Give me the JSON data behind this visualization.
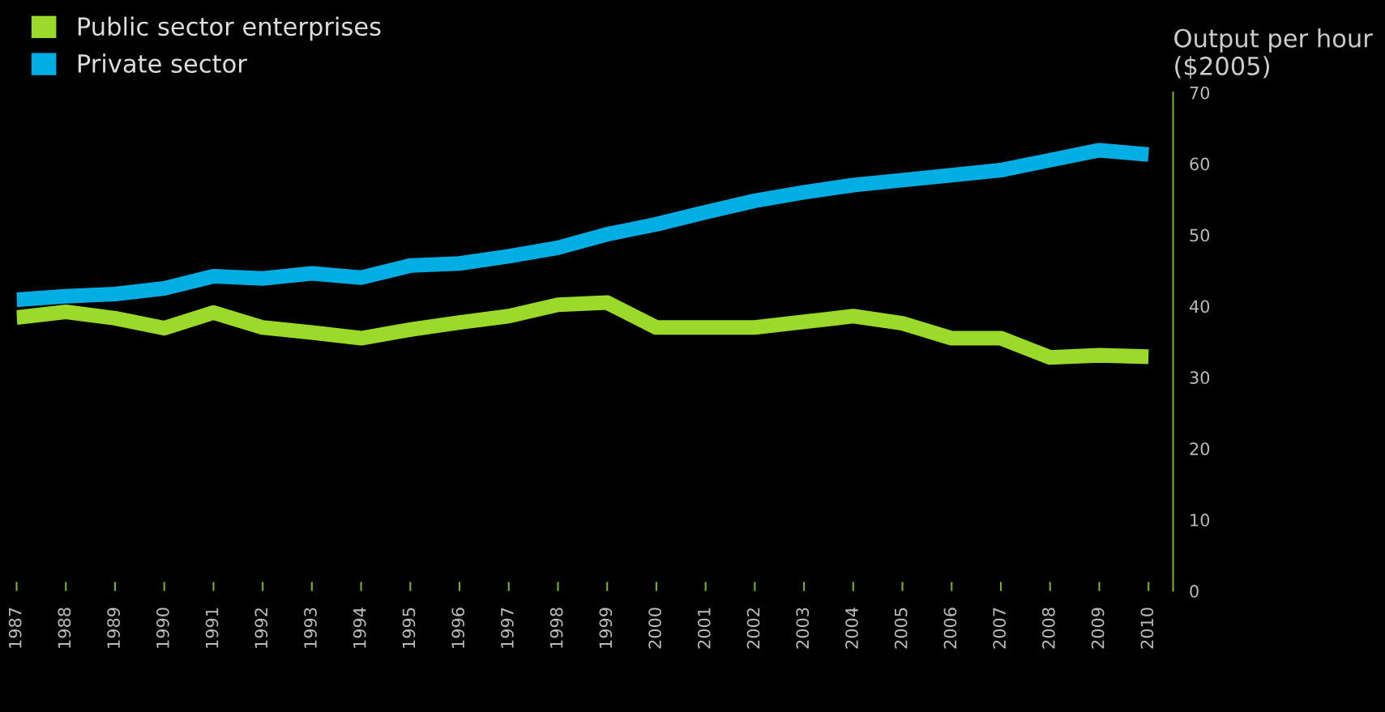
{
  "chart_data": {
    "type": "line",
    "ylabel": "Output per hour\n($2005)",
    "x": [
      1987,
      1988,
      1989,
      1990,
      1991,
      1992,
      1993,
      1994,
      1995,
      1996,
      1997,
      1998,
      1999,
      2000,
      2001,
      2002,
      2003,
      2004,
      2005,
      2006,
      2007,
      2008,
      2009,
      2010
    ],
    "series": [
      {
        "name": "Public sector enterprises",
        "color": "#9bd92a",
        "values": [
          38.4,
          39.2,
          38.3,
          36.9,
          39.1,
          37.0,
          36.3,
          35.5,
          36.7,
          37.7,
          38.6,
          40.2,
          40.5,
          37.0,
          37.0,
          37.0,
          37.8,
          38.6,
          37.6,
          35.5,
          35.5,
          32.8,
          33.1,
          32.9
        ]
      },
      {
        "name": "Private sector",
        "color": "#00aee3",
        "values": [
          40.9,
          41.4,
          41.7,
          42.5,
          44.2,
          43.9,
          44.6,
          44.0,
          45.7,
          46.0,
          47.0,
          48.2,
          50.1,
          51.5,
          53.2,
          54.8,
          56.0,
          57.0,
          57.7,
          58.4,
          59.1,
          60.5,
          61.9,
          61.3
        ]
      }
    ],
    "xlim": [
      1987,
      2010.5
    ],
    "xticks": [
      1987,
      1988,
      1989,
      1990,
      1991,
      1992,
      1993,
      1994,
      1995,
      1996,
      1997,
      1998,
      1999,
      2000,
      2001,
      2002,
      2003,
      2004,
      2005,
      2006,
      2007,
      2008,
      2009,
      2010
    ],
    "ylim": [
      0,
      70
    ],
    "yticks": [
      0,
      10,
      20,
      30,
      40,
      50,
      60,
      70
    ],
    "grid": false,
    "legend": "top left",
    "marker": "none",
    "line_style": "solid"
  }
}
